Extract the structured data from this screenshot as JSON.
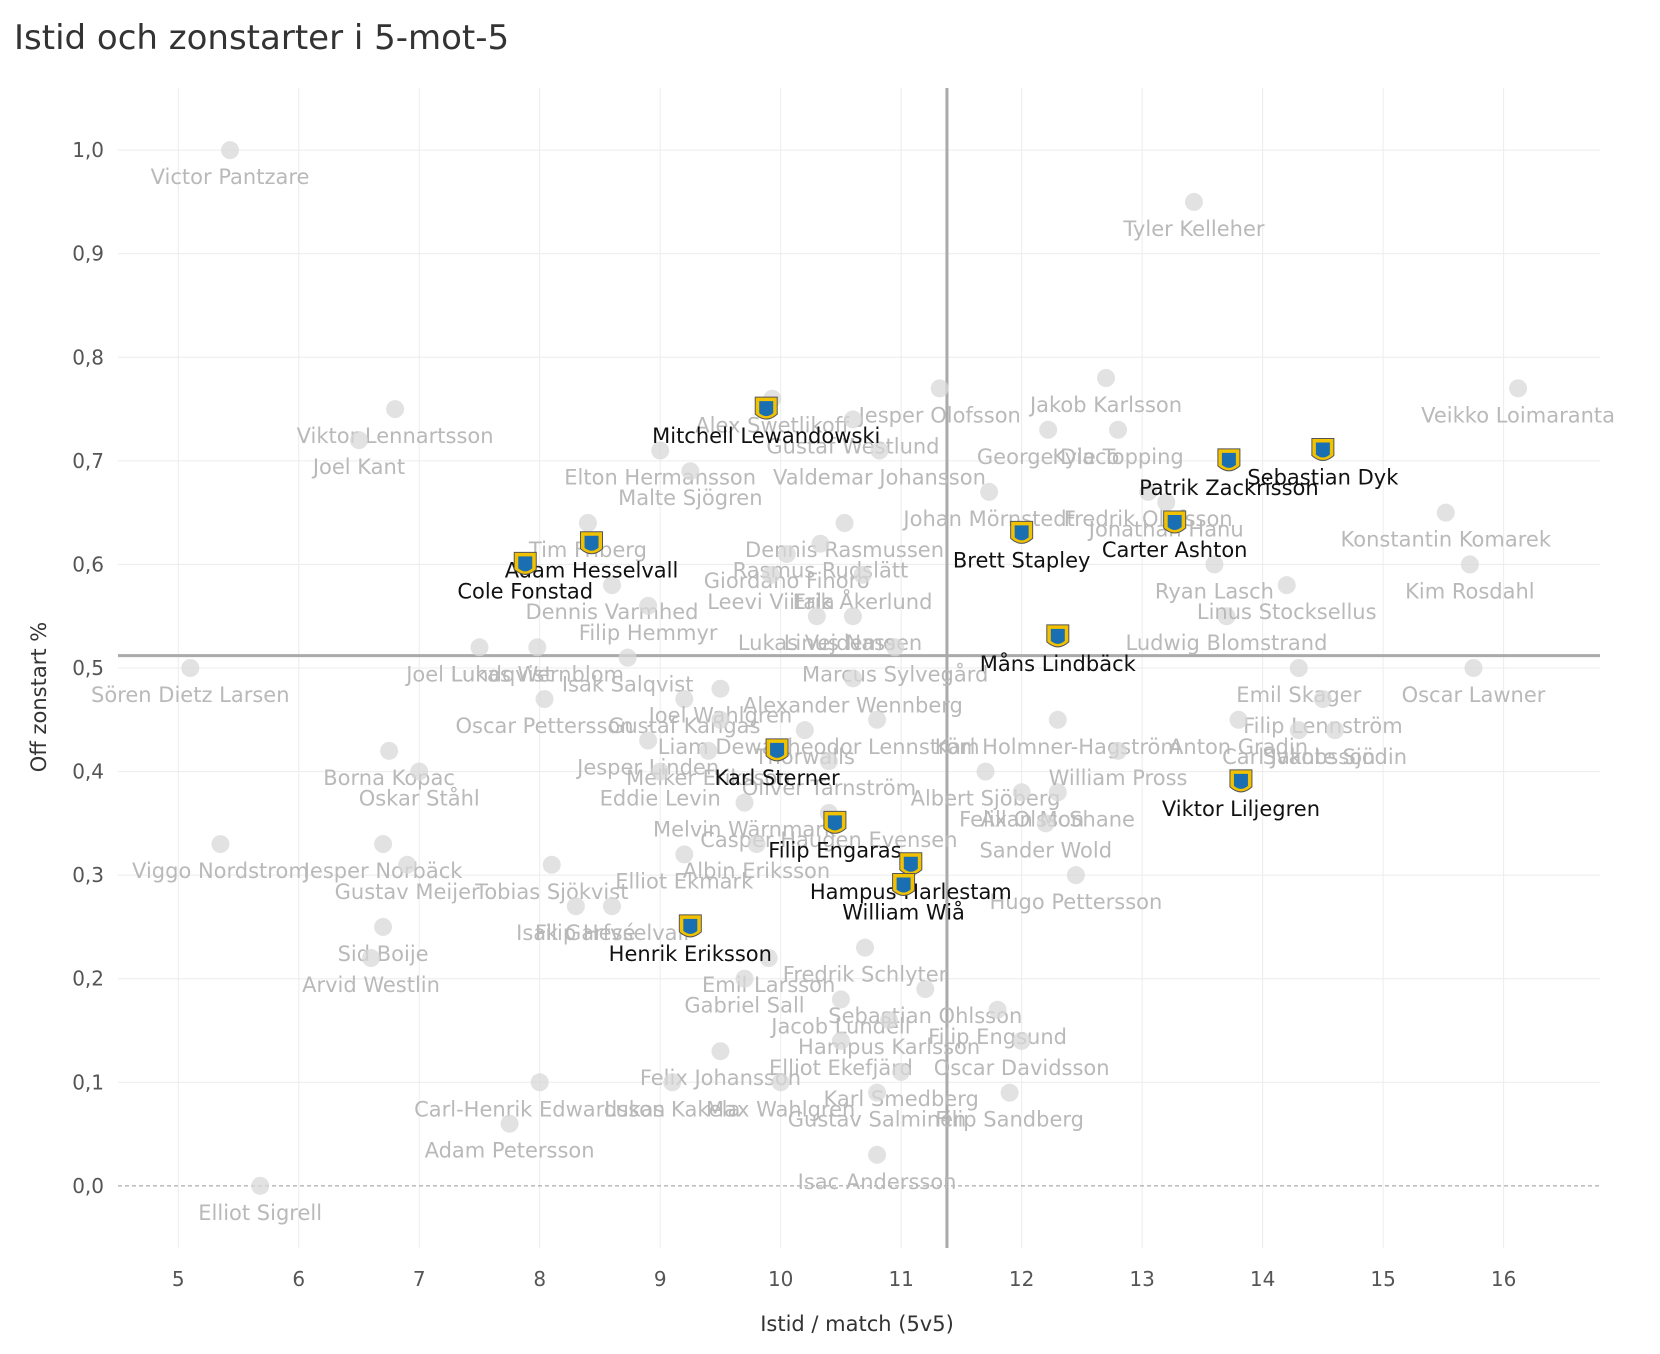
{
  "chart_data": {
    "type": "scatter",
    "title": "Istid och zonstarter i 5-mot-5",
    "xlabel": "Istid / match (5v5)",
    "ylabel": "Off zonstart %",
    "xlim": [
      4.5,
      16.8
    ],
    "ylim": [
      -0.06,
      1.06
    ],
    "x_ticks": [
      5,
      6,
      7,
      8,
      9,
      10,
      11,
      12,
      13,
      14,
      15,
      16
    ],
    "y_ticks": [
      0.0,
      0.1,
      0.2,
      0.3,
      0.4,
      0.5,
      0.6,
      0.7,
      0.8,
      0.9,
      1.0
    ],
    "y_tick_labels": [
      "0,0",
      "0,1",
      "0,2",
      "0,3",
      "0,4",
      "0,5",
      "0,6",
      "0,7",
      "0,8",
      "0,9",
      "1,0"
    ],
    "reference_lines": {
      "x": 11.38,
      "y": 0.512
    },
    "colors": {
      "highlight_badge": "#1a6fb3",
      "highlight_badge_accent": "#f2c200",
      "faded_marker": "#d8d8d8",
      "ref_line": "#aaaaaa"
    },
    "highlighted_points": [
      {
        "name": "Mitchell Lewandowski",
        "x": 9.88,
        "y": 0.75
      },
      {
        "name": "Sebastian Dyk",
        "x": 14.5,
        "y": 0.71
      },
      {
        "name": "Patrik Zackrisson",
        "x": 13.72,
        "y": 0.7
      },
      {
        "name": "Adam Hesselvall",
        "x": 8.43,
        "y": 0.62
      },
      {
        "name": "Cole Fonstad",
        "x": 7.88,
        "y": 0.6
      },
      {
        "name": "Brett Stapley",
        "x": 12.0,
        "y": 0.63
      },
      {
        "name": "Carter Ashton",
        "x": 13.27,
        "y": 0.64
      },
      {
        "name": "Måns Lindbäck",
        "x": 12.3,
        "y": 0.53
      },
      {
        "name": "Karl Sterner",
        "x": 9.97,
        "y": 0.42
      },
      {
        "name": "Viktor Liljegren",
        "x": 13.82,
        "y": 0.39
      },
      {
        "name": "Filip Engaras",
        "x": 10.45,
        "y": 0.35
      },
      {
        "name": "Hampus Harlestam",
        "x": 11.08,
        "y": 0.31
      },
      {
        "name": "William Wiå",
        "x": 11.02,
        "y": 0.29
      },
      {
        "name": "Henrik Eriksson",
        "x": 9.25,
        "y": 0.25
      }
    ],
    "other_points": [
      {
        "name": "Victor Pantzare",
        "x": 5.43,
        "y": 1.0
      },
      {
        "name": "Tyler Kelleher",
        "x": 13.43,
        "y": 0.95
      },
      {
        "name": "Veikko Loimaranta",
        "x": 16.12,
        "y": 0.77
      },
      {
        "name": "Viktor Lennartsson",
        "x": 6.8,
        "y": 0.75
      },
      {
        "name": "Joel Kant",
        "x": 6.5,
        "y": 0.72
      },
      {
        "name": "Jesper Olofsson",
        "x": 11.32,
        "y": 0.77
      },
      {
        "name": "Jakob Karlsson",
        "x": 12.7,
        "y": 0.78
      },
      {
        "name": "George Diaco",
        "x": 12.22,
        "y": 0.73
      },
      {
        "name": "Kyle Topping",
        "x": 12.8,
        "y": 0.73
      },
      {
        "name": "Alex Swetlikoff",
        "x": 9.93,
        "y": 0.76
      },
      {
        "name": "Gustaf Westlund",
        "x": 10.6,
        "y": 0.74
      },
      {
        "name": "Valdemar Johansson",
        "x": 10.82,
        "y": 0.71
      },
      {
        "name": "Elton Hermansson",
        "x": 9.0,
        "y": 0.71
      },
      {
        "name": "Malte Sjögren",
        "x": 9.25,
        "y": 0.69
      },
      {
        "name": "Johan Mörnstedt",
        "x": 11.73,
        "y": 0.67
      },
      {
        "name": "Fredrik Olofsson",
        "x": 13.05,
        "y": 0.67
      },
      {
        "name": "Jonathan Hanu",
        "x": 13.2,
        "y": 0.66
      },
      {
        "name": "Konstantin Komarek",
        "x": 15.52,
        "y": 0.65
      },
      {
        "name": "Kim Rosdahl",
        "x": 15.72,
        "y": 0.6
      },
      {
        "name": "Dennis Rasmussen",
        "x": 10.53,
        "y": 0.64
      },
      {
        "name": "Rasmus Rudslätt",
        "x": 10.33,
        "y": 0.62
      },
      {
        "name": "Giordano Finoro",
        "x": 10.05,
        "y": 0.61
      },
      {
        "name": "Erik Åkerlund",
        "x": 10.68,
        "y": 0.59
      },
      {
        "name": "Leevi Viitala",
        "x": 9.92,
        "y": 0.59
      },
      {
        "name": "Tim Friberg",
        "x": 8.4,
        "y": 0.64
      },
      {
        "name": "Dennis Varmhed",
        "x": 8.6,
        "y": 0.58
      },
      {
        "name": "Filip Hemmyr",
        "x": 8.9,
        "y": 0.56
      },
      {
        "name": "Lukas Vejdemo",
        "x": 10.3,
        "y": 0.55
      },
      {
        "name": "Linus Nassen",
        "x": 10.6,
        "y": 0.55
      },
      {
        "name": "Ludwig Blomstrand",
        "x": 13.7,
        "y": 0.55
      },
      {
        "name": "Linus Stocksellus",
        "x": 14.2,
        "y": 0.58
      },
      {
        "name": "Ryan Lasch",
        "x": 13.6,
        "y": 0.6
      },
      {
        "name": "Marcus Sylvegård",
        "x": 10.95,
        "y": 0.52
      },
      {
        "name": "Alexander Wennberg",
        "x": 10.6,
        "y": 0.49
      },
      {
        "name": "Joel Lundqvist",
        "x": 7.5,
        "y": 0.52
      },
      {
        "name": "Isak Salqvist",
        "x": 8.73,
        "y": 0.51
      },
      {
        "name": "Lukas Wernblom",
        "x": 7.98,
        "y": 0.52
      },
      {
        "name": "Sören Dietz Larsen",
        "x": 5.1,
        "y": 0.5
      },
      {
        "name": "Oscar Pettersson",
        "x": 8.04,
        "y": 0.47
      },
      {
        "name": "Gustaf Kangas",
        "x": 9.2,
        "y": 0.47
      },
      {
        "name": "Joel Wahlgren",
        "x": 9.5,
        "y": 0.48
      },
      {
        "name": "Emil Skager",
        "x": 14.3,
        "y": 0.5
      },
      {
        "name": "Filip Lennström",
        "x": 14.5,
        "y": 0.47
      },
      {
        "name": "Oscar Lawner",
        "x": 15.75,
        "y": 0.5
      },
      {
        "name": "Anton Gradin",
        "x": 13.8,
        "y": 0.45
      },
      {
        "name": "Carl Jakobsson",
        "x": 14.3,
        "y": 0.44
      },
      {
        "name": "Svante Sjödin",
        "x": 14.6,
        "y": 0.44
      },
      {
        "name": "Karl Holmner-Hagström",
        "x": 12.3,
        "y": 0.45
      },
      {
        "name": "Theodor Lennström",
        "x": 10.8,
        "y": 0.45
      },
      {
        "name": "Liam Dewar",
        "x": 9.5,
        "y": 0.45
      },
      {
        "name": "Jesper Linden",
        "x": 8.9,
        "y": 0.43
      },
      {
        "name": "Melker Eriksson",
        "x": 9.4,
        "y": 0.42
      },
      {
        "name": "Thorwalls",
        "x": 10.2,
        "y": 0.44
      },
      {
        "name": "Eddie Levin",
        "x": 9.0,
        "y": 0.4
      },
      {
        "name": "Oliver Tärnström",
        "x": 10.4,
        "y": 0.41
      },
      {
        "name": "Albert Sjöberg",
        "x": 11.7,
        "y": 0.4
      },
      {
        "name": "Allan McShane",
        "x": 12.3,
        "y": 0.38
      },
      {
        "name": "William Pross",
        "x": 12.8,
        "y": 0.42
      },
      {
        "name": "Felix Olsson",
        "x": 12.0,
        "y": 0.38
      },
      {
        "name": "Sander Wold",
        "x": 12.2,
        "y": 0.35
      },
      {
        "name": "Borna Kopac",
        "x": 6.75,
        "y": 0.42
      },
      {
        "name": "Oskar Ståhl",
        "x": 7.0,
        "y": 0.4
      },
      {
        "name": "Melvin Wärnmark",
        "x": 9.7,
        "y": 0.37
      },
      {
        "name": "Casper Haugen Evensen",
        "x": 10.4,
        "y": 0.36
      },
      {
        "name": "Albin Eriksson",
        "x": 9.8,
        "y": 0.33
      },
      {
        "name": "Elliot Ekmark",
        "x": 9.2,
        "y": 0.32
      },
      {
        "name": "Jesper Norbäck",
        "x": 6.7,
        "y": 0.33
      },
      {
        "name": "Gustav Meijer",
        "x": 6.9,
        "y": 0.31
      },
      {
        "name": "Tobias Sjökvist",
        "x": 8.1,
        "y": 0.31
      },
      {
        "name": "Viggo Nordstrom",
        "x": 5.35,
        "y": 0.33
      },
      {
        "name": "Hugo Pettersson",
        "x": 12.45,
        "y": 0.3
      },
      {
        "name": "Isak Garfvé",
        "x": 8.3,
        "y": 0.27
      },
      {
        "name": "Filip Hesselvall",
        "x": 8.6,
        "y": 0.27
      },
      {
        "name": "Sid Boije",
        "x": 6.7,
        "y": 0.25
      },
      {
        "name": "Arvid Westlin",
        "x": 6.6,
        "y": 0.22
      },
      {
        "name": "Fredrik Schlyter",
        "x": 10.7,
        "y": 0.23
      },
      {
        "name": "Emil Larsson",
        "x": 9.9,
        "y": 0.22
      },
      {
        "name": "Gabriel Sall",
        "x": 9.7,
        "y": 0.2
      },
      {
        "name": "Sebastian Ohlsson",
        "x": 11.2,
        "y": 0.19
      },
      {
        "name": "Jacob Lundell",
        "x": 10.5,
        "y": 0.18
      },
      {
        "name": "Filip Engsund",
        "x": 11.8,
        "y": 0.17
      },
      {
        "name": "Hampus Karlsson",
        "x": 10.9,
        "y": 0.16
      },
      {
        "name": "Elliot Ekefjärd",
        "x": 10.5,
        "y": 0.14
      },
      {
        "name": "Oscar Davidsson",
        "x": 12.0,
        "y": 0.14
      },
      {
        "name": "Felix Johansson",
        "x": 9.5,
        "y": 0.13
      },
      {
        "name": "Karl Smedberg",
        "x": 11.0,
        "y": 0.11
      },
      {
        "name": "Gustav Salminen",
        "x": 10.8,
        "y": 0.09
      },
      {
        "name": "Filip Sandberg",
        "x": 11.9,
        "y": 0.09
      },
      {
        "name": "Carl-Henrik Edwardsson",
        "x": 8.0,
        "y": 0.1
      },
      {
        "name": "Lukas Kakela",
        "x": 9.1,
        "y": 0.1
      },
      {
        "name": "Max Wahlgren",
        "x": 10.0,
        "y": 0.1
      },
      {
        "name": "Adam Petersson",
        "x": 7.75,
        "y": 0.06
      },
      {
        "name": "Isac Andersson",
        "x": 10.8,
        "y": 0.03
      },
      {
        "name": "Elliot Sigrell",
        "x": 5.68,
        "y": 0.0
      }
    ]
  }
}
